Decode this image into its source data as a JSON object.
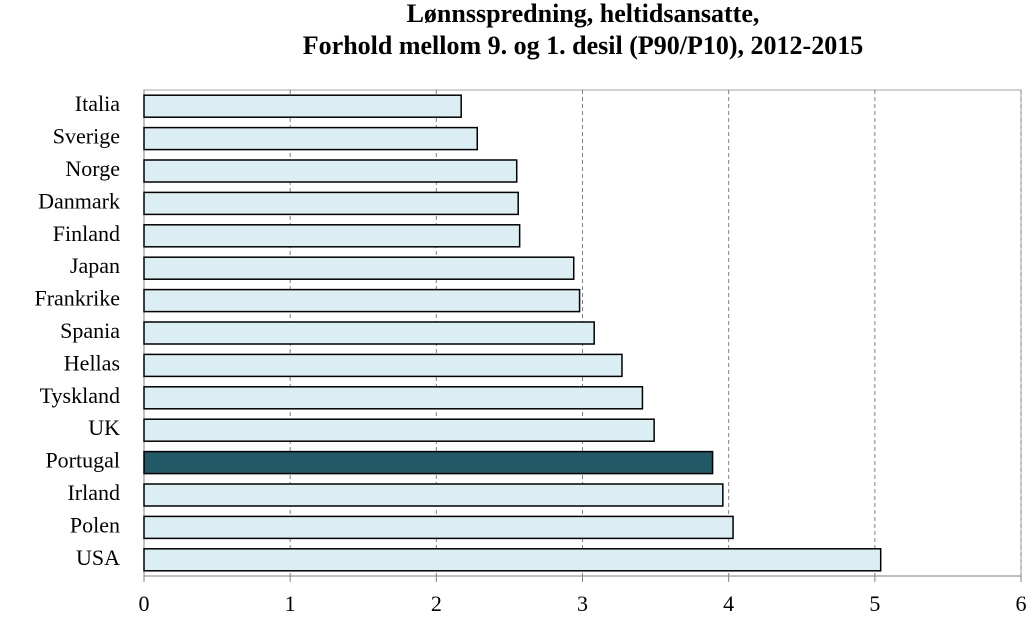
{
  "chart_data": {
    "type": "bar",
    "orientation": "horizontal",
    "title": [
      "Lønnsspredning, heltidsansatte,",
      "Forhold mellom 9. og 1. desil (P90/P10), 2012-2015"
    ],
    "categories": [
      "Italia",
      "Sverige",
      "Norge",
      "Danmark",
      "Finland",
      "Japan",
      "Frankrike",
      "Spania",
      "Hellas",
      "Tyskland",
      "UK",
      "Portugal",
      "Irland",
      "Polen",
      "USA"
    ],
    "values": [
      2.17,
      2.28,
      2.55,
      2.56,
      2.57,
      2.94,
      2.98,
      3.08,
      3.27,
      3.41,
      3.49,
      3.89,
      3.96,
      4.03,
      5.04
    ],
    "colors": [
      "#daeef3",
      "#daeef3",
      "#daeef3",
      "#daeef3",
      "#daeef3",
      "#daeef3",
      "#daeef3",
      "#daeef3",
      "#daeef3",
      "#daeef3",
      "#daeef3",
      "#215967",
      "#daeef3",
      "#daeef3",
      "#daeef3"
    ],
    "xlim": [
      0,
      6
    ],
    "xticks": [
      0,
      1,
      2,
      3,
      4,
      5,
      6
    ],
    "grid": true
  }
}
